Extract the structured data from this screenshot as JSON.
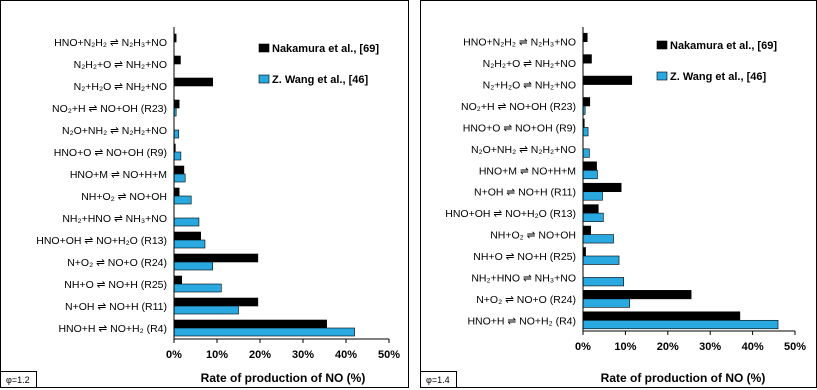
{
  "colors": {
    "series1": "#000000",
    "series2": "#29a9e0",
    "axis": "#000000"
  },
  "chart_data": [
    {
      "type": "bar",
      "orientation": "horizontal",
      "phi_label": "φ=1.2",
      "xlabel": "Rate of production of NO (%)",
      "xlim": [
        0,
        50
      ],
      "xticks": [
        "0%",
        "10%",
        "20%",
        "30%",
        "40%",
        "50%"
      ],
      "legend_position": "top-right",
      "categories": [
        "HNO+H ⇌ NO+H₂ (R4)",
        "N+OH ⇌ NO+H (R11)",
        "NH+O ⇌ NO+H (R25)",
        "N+O₂ ⇌ NO+O (R24)",
        "HNO+OH ⇌ NO+H₂O (R13)",
        "NH₂+HNO ⇌ NH₃+NO",
        "NH+O₂ ⇌ NO+OH",
        "HNO+M ⇌ NO+H+M",
        "HNO+O ⇌ NO+OH (R9)",
        "N₂O+NH₂ ⇌ N₂H₂+NO",
        "NO₂+H ⇌ NO+OH (R23)",
        "N₂+H₂O ⇌ NH₂+NO",
        "N₂H₂+O ⇌ NH₂+NO",
        "HNO+N₂H₂ ⇌ N₂H₃+NO"
      ],
      "series": [
        {
          "name": "Nakamura et al., [69]",
          "values": [
            35.5,
            19.5,
            1.8,
            19.5,
            6.2,
            0.0,
            1.2,
            2.3,
            0.3,
            0.0,
            1.2,
            9.0,
            1.5,
            0.5
          ]
        },
        {
          "name": "Z. Wang et al., [46]",
          "values": [
            42.0,
            15.0,
            11.0,
            9.0,
            7.2,
            5.8,
            4.0,
            2.6,
            1.6,
            1.1,
            0.5,
            0.0,
            0.0,
            0.0
          ]
        }
      ]
    },
    {
      "type": "bar",
      "orientation": "horizontal",
      "phi_label": "φ=1.4",
      "xlabel": "Rate of production of NO (%)",
      "xlim": [
        0,
        50
      ],
      "xticks": [
        "0%",
        "10%",
        "20%",
        "30%",
        "40%",
        "50%"
      ],
      "legend_position": "top-right",
      "categories": [
        "HNO+H ⇌ NO+H₂ (R4)",
        "N+O₂ ⇌ NO+O (R24)",
        "NH₂+HNO ⇌ NH₃+NO",
        "NH+O ⇌ NO+H (R25)",
        "NH+O₂ ⇌ NO+OH",
        "HNO+OH ⇌ NO+H₂O (R13)",
        "N+OH ⇌ NO+H (R11)",
        "HNO+M ⇌ NO+H+M",
        "N₂O+NH₂ ⇌ N₂H₂+NO",
        "HNO+O ⇌ NO+OH (R9)",
        "NO₂+H ⇌ NO+OH (R23)",
        "N₂+H₂O ⇌ NH₂+NO",
        "N₂H₂+O ⇌ NH₂+NO",
        "HNO+N₂H₂ ⇌ N₂H₃+NO"
      ],
      "series": [
        {
          "name": "Nakamura et al., [69]",
          "values": [
            37.0,
            25.5,
            0.0,
            0.6,
            1.8,
            3.6,
            9.0,
            3.2,
            0.0,
            0.3,
            1.6,
            11.5,
            2.0,
            1.0
          ]
        },
        {
          "name": "Z. Wang et al., [46]",
          "values": [
            46.0,
            11.0,
            9.6,
            8.5,
            7.2,
            4.8,
            4.6,
            3.4,
            1.5,
            1.2,
            0.5,
            0.0,
            0.0,
            0.0
          ]
        }
      ]
    }
  ]
}
